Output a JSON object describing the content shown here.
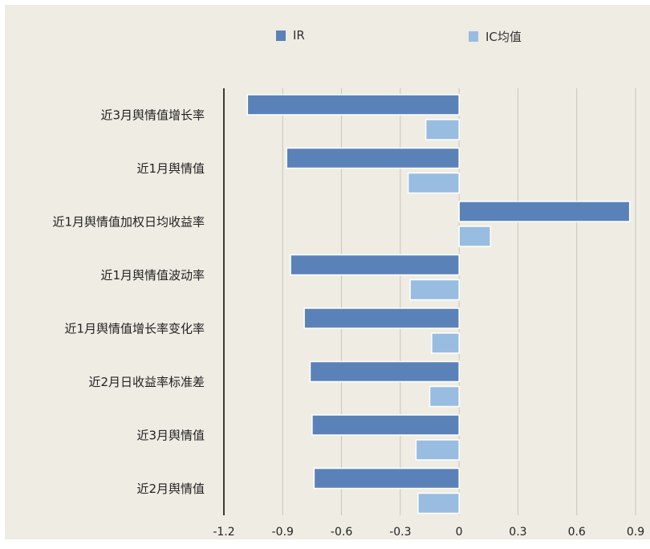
{
  "chart_data": {
    "type": "bar",
    "orientation": "horizontal",
    "categories": [
      "近3月舆情值增长率",
      "近1月舆情值",
      "近1月舆情值加权日均收益率",
      "近1月舆情值波动率",
      "近1月舆情值增长率变化率",
      "近2月日收益率标准差",
      "近3月舆情值",
      "近2月舆情值"
    ],
    "series": [
      {
        "name": "IR",
        "color": "#5b82b8",
        "values": [
          -1.08,
          -0.88,
          0.87,
          -0.86,
          -0.79,
          -0.76,
          -0.75,
          -0.74
        ]
      },
      {
        "name": "IC均值",
        "color": "#98bde1",
        "values": [
          -0.17,
          -0.26,
          0.16,
          -0.25,
          -0.14,
          -0.15,
          -0.22,
          -0.21
        ]
      }
    ],
    "xlim": [
      -1.2,
      0.9
    ],
    "xticks": [
      "-1.2",
      "-0.9",
      "-0.6",
      "-0.3",
      "0",
      "0.3",
      "0.6",
      "0.9"
    ],
    "xtick_values": [
      -1.2,
      -0.9,
      -0.6,
      -0.3,
      0,
      0.3,
      0.6,
      0.9
    ],
    "grid": "vertical",
    "legend_position": "top"
  }
}
